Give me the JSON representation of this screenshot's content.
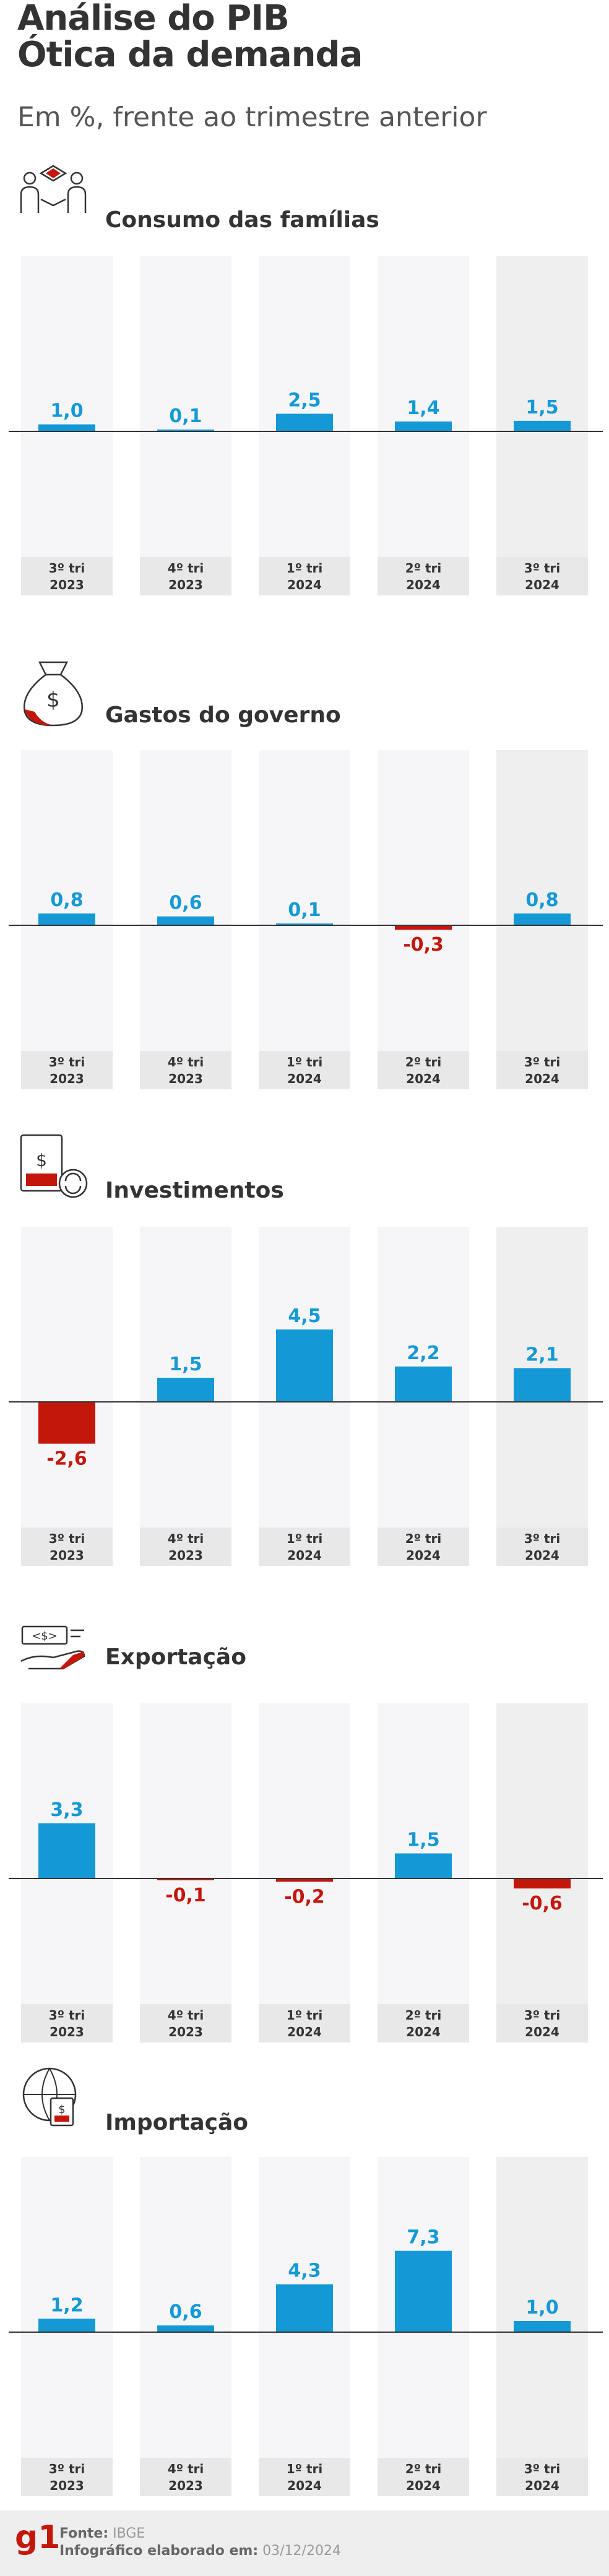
{
  "header": {
    "title_line1": "Análise do PIB",
    "title_line2": "Ótica da demanda",
    "subtitle": "Em %, frente ao trimestre anterior"
  },
  "colors": {
    "positive": "#1499d6",
    "negative": "#c4170c",
    "column_bg": "#f6f6f8",
    "column_bg_last": "#efefef",
    "label_bg": "#e8e8e8",
    "baseline": "#333333"
  },
  "icons": [
    "family-icon",
    "money-bag-icon",
    "investment-icon",
    "export-icon",
    "import-icon"
  ],
  "chart_data": [
    {
      "type": "bar",
      "title": "Consumo das famílias",
      "categories": [
        "3º tri 2023",
        "4º tri 2023",
        "1º tri 2024",
        "2º tri 2024",
        "3º tri 2024"
      ],
      "values": [
        1.0,
        0.1,
        2.5,
        1.4,
        1.5
      ],
      "value_labels": [
        "1,0",
        "0,1",
        "2,5",
        "1,4",
        "1,5"
      ]
    },
    {
      "type": "bar",
      "title": "Gastos do governo",
      "categories": [
        "3º tri 2023",
        "4º tri 2023",
        "1º tri 2024",
        "2º tri 2024",
        "3º tri 2024"
      ],
      "values": [
        0.8,
        0.6,
        0.1,
        -0.3,
        0.8
      ],
      "value_labels": [
        "0,8",
        "0,6",
        "0,1",
        "-0,3",
        "0,8"
      ]
    },
    {
      "type": "bar",
      "title": "Investimentos",
      "categories": [
        "3º tri 2023",
        "4º tri 2023",
        "1º tri 2024",
        "2º tri 2024",
        "3º tri 2024"
      ],
      "values": [
        -2.6,
        1.5,
        4.5,
        2.2,
        2.1
      ],
      "value_labels": [
        "-2,6",
        "1,5",
        "4,5",
        "2,2",
        "2,1"
      ]
    },
    {
      "type": "bar",
      "title": "Exportação",
      "categories": [
        "3º tri 2023",
        "4º tri 2023",
        "1º tri 2024",
        "2º tri 2024",
        "3º tri 2024"
      ],
      "values": [
        3.3,
        -0.1,
        -0.2,
        1.5,
        -0.6
      ],
      "value_labels": [
        "3,3",
        "-0,1",
        "-0,2",
        "1,5",
        "-0,6"
      ]
    },
    {
      "type": "bar",
      "title": "Importação",
      "categories": [
        "3º tri 2023",
        "4º tri 2023",
        "1º tri 2024",
        "2º tri 2024",
        "3º tri 2024"
      ],
      "values": [
        1.2,
        0.6,
        4.3,
        7.3,
        1.0
      ],
      "value_labels": [
        "1,2",
        "0,6",
        "4,3",
        "7,3",
        "1,0"
      ]
    }
  ],
  "footer": {
    "logo": "g1",
    "source_label": "Fonte:",
    "source_value": "IBGE",
    "date_label": "Infográfico elaborado em:",
    "date_value": "03/12/2024"
  }
}
